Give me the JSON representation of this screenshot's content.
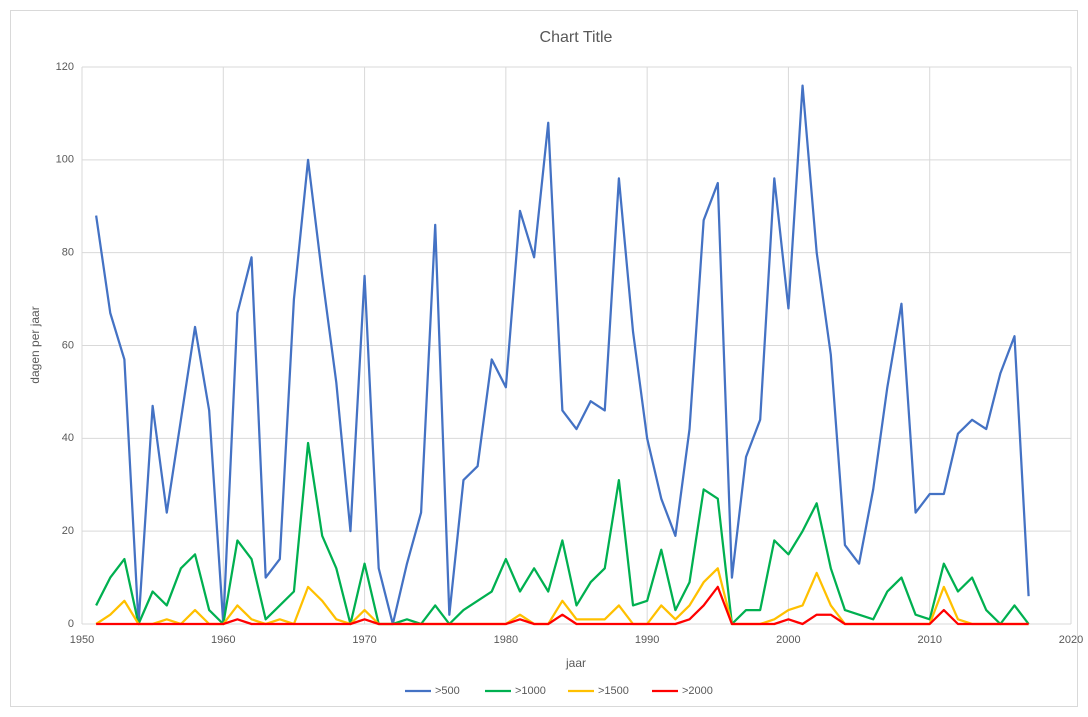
{
  "chart_data": {
    "type": "line",
    "title": "Chart Title",
    "xlabel": "jaar",
    "ylabel": "dagen per jaar",
    "x": [
      1951,
      1952,
      1953,
      1954,
      1955,
      1956,
      1957,
      1958,
      1959,
      1960,
      1961,
      1962,
      1963,
      1964,
      1965,
      1966,
      1967,
      1968,
      1969,
      1970,
      1971,
      1972,
      1973,
      1974,
      1975,
      1976,
      1977,
      1978,
      1979,
      1980,
      1981,
      1982,
      1983,
      1984,
      1985,
      1986,
      1987,
      1988,
      1989,
      1990,
      1991,
      1992,
      1993,
      1994,
      1995,
      1996,
      1997,
      1998,
      1999,
      2000,
      2001,
      2002,
      2003,
      2004,
      2005,
      2006,
      2007,
      2008,
      2009,
      2010,
      2011,
      2012,
      2013,
      2014,
      2015,
      2016,
      2017
    ],
    "series": [
      {
        "name": ">500",
        "color": "#4472c4",
        "values": [
          88,
          67,
          57,
          0,
          47,
          24,
          44,
          64,
          46,
          0,
          67,
          79,
          10,
          14,
          70,
          100,
          75,
          52,
          20,
          75,
          12,
          0,
          13,
          24,
          86,
          2,
          31,
          34,
          57,
          51,
          89,
          79,
          108,
          46,
          42,
          48,
          46,
          96,
          63,
          40,
          27,
          19,
          42,
          87,
          95,
          10,
          36,
          44,
          96,
          68,
          116,
          80,
          58,
          17,
          13,
          29,
          51,
          69,
          24,
          28,
          28,
          41,
          44,
          42,
          54,
          62,
          6
        ]
      },
      {
        "name": ">1000",
        "color": "#00b050",
        "values": [
          4,
          10,
          14,
          0,
          7,
          4,
          12,
          15,
          3,
          0,
          18,
          14,
          1,
          4,
          7,
          39,
          19,
          12,
          0,
          13,
          0,
          0,
          1,
          0,
          4,
          0,
          3,
          5,
          7,
          14,
          7,
          12,
          7,
          18,
          4,
          9,
          12,
          31,
          4,
          5,
          16,
          3,
          9,
          29,
          27,
          0,
          3,
          3,
          18,
          15,
          20,
          26,
          12,
          3,
          2,
          1,
          7,
          10,
          2,
          1,
          13,
          7,
          10,
          3,
          0,
          4,
          0
        ]
      },
      {
        "name": ">1500",
        "color": "#ffc000",
        "values": [
          0,
          2,
          5,
          0,
          0,
          1,
          0,
          3,
          0,
          0,
          4,
          1,
          0,
          1,
          0,
          8,
          5,
          1,
          0,
          3,
          0,
          0,
          0,
          0,
          0,
          0,
          0,
          0,
          0,
          0,
          2,
          0,
          0,
          5,
          1,
          1,
          1,
          4,
          0,
          0,
          4,
          1,
          4,
          9,
          12,
          0,
          0,
          0,
          1,
          3,
          4,
          11,
          4,
          0,
          0,
          0,
          0,
          0,
          0,
          0,
          8,
          1,
          0,
          0,
          0,
          0,
          0
        ]
      },
      {
        "name": ">2000",
        "color": "#ff0000",
        "values": [
          0,
          0,
          0,
          0,
          0,
          0,
          0,
          0,
          0,
          0,
          1,
          0,
          0,
          0,
          0,
          0,
          0,
          0,
          0,
          1,
          0,
          0,
          0,
          0,
          0,
          0,
          0,
          0,
          0,
          0,
          1,
          0,
          0,
          2,
          0,
          0,
          0,
          0,
          0,
          0,
          0,
          0,
          1,
          4,
          8,
          0,
          0,
          0,
          0,
          1,
          0,
          2,
          2,
          0,
          0,
          0,
          0,
          0,
          0,
          0,
          3,
          0,
          0,
          0,
          0,
          0,
          0
        ]
      }
    ],
    "xlim": [
      1950,
      2020
    ],
    "xticks": [
      1950,
      1960,
      1970,
      1980,
      1990,
      2000,
      2010,
      2020
    ],
    "ylim": [
      0,
      120
    ],
    "yticks": [
      0,
      20,
      40,
      60,
      80,
      100,
      120
    ],
    "grid": true,
    "legend": "bottom"
  }
}
